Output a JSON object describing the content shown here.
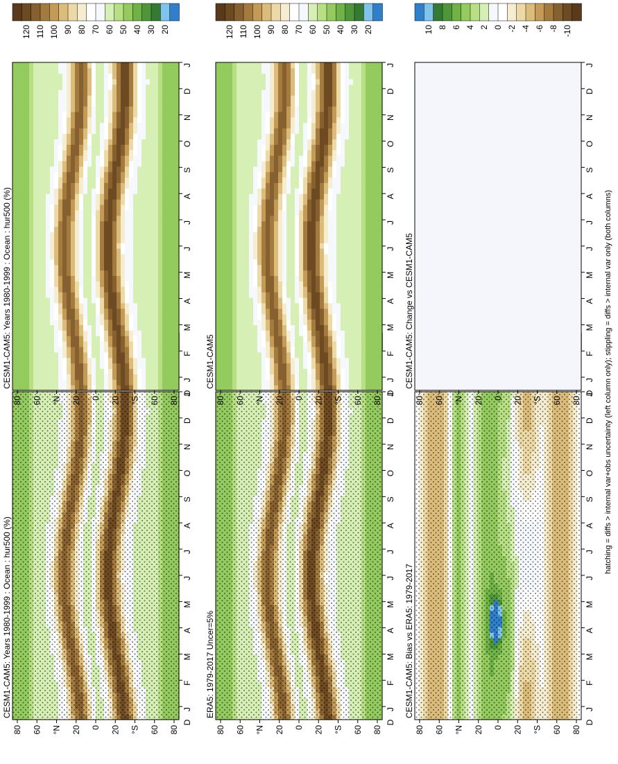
{
  "footer_note": "hatching = diffs > internal var+obs uncertainty (left column only); stippling = diffs > internal var only (both columns)",
  "colors": {
    "abs_scale": [
      "#5a3a1a",
      "#6e4a23",
      "#87602f",
      "#a47b3e",
      "#c39a56",
      "#dbbc7a",
      "#ecd9a6",
      "#f6edd1",
      "#ffffff",
      "#f5f8fd",
      "#d6efb4",
      "#b7df84",
      "#93cb5e",
      "#6fb347",
      "#4f963b",
      "#357a33",
      "#80c4ec",
      "#2f7fcb"
    ],
    "diff_scale": [
      "#2f7fcb",
      "#80c4ec",
      "#357a33",
      "#4f963b",
      "#6fb347",
      "#93cb5e",
      "#b7df84",
      "#d6efb4",
      "#f5f8fd",
      "#ffffff",
      "#f6edd1",
      "#ecd9a6",
      "#dbbc7a",
      "#c39a56",
      "#a47b3e",
      "#87602f",
      "#6e4a23",
      "#5a3a1a"
    ],
    "ocean_background": "#f4f6fb"
  },
  "chart_data": [
    {
      "type": "heatmap",
      "title": "CESM1-CAM5: Years 1980-1999 : Ocean : hur500 (%)",
      "x_categories": [
        "J",
        "F",
        "M",
        "A",
        "M",
        "J",
        "J",
        "A",
        "S",
        "O",
        "N",
        "D",
        "J"
      ],
      "y_ticks": [
        "80",
        "60",
        "°N",
        "20",
        "0",
        "20",
        "°S",
        "60",
        "80"
      ],
      "y_start_label": "D",
      "colorbar_labels": [
        "120",
        "110",
        "100",
        "90",
        "80",
        "70",
        "60",
        "50",
        "40",
        "30",
        "20"
      ],
      "zlim": [
        10,
        130
      ],
      "stippling": true,
      "hatching": true
    },
    {
      "type": "heatmap",
      "title": "CESM1-CAM5: Years 1980-1999 : Ocean : hur500 (%)",
      "x_categories": [
        "J",
        "F",
        "M",
        "A",
        "M",
        "J",
        "J",
        "A",
        "S",
        "O",
        "N",
        "D",
        "J"
      ],
      "y_ticks": [
        "80",
        "60",
        "°N",
        "20",
        "0",
        "20",
        "°S",
        "60",
        "80"
      ],
      "y_start_label": "D",
      "colorbar_labels": [
        "120",
        "110",
        "100",
        "90",
        "80",
        "70",
        "60",
        "50",
        "40",
        "30",
        "20"
      ],
      "zlim": [
        10,
        130
      ],
      "stippling": false,
      "hatching": false
    },
    {
      "type": "heatmap",
      "title": "ERA5: 1979-2017 Uncer=5%",
      "x_categories": [
        "J",
        "F",
        "M",
        "A",
        "M",
        "J",
        "J",
        "A",
        "S",
        "O",
        "N",
        "D",
        "J"
      ],
      "y_ticks": [
        "80",
        "60",
        "°N",
        "20",
        "0",
        "20",
        "°S",
        "60",
        "80"
      ],
      "y_start_label": "D",
      "colorbar_labels": [
        "120",
        "110",
        "100",
        "90",
        "80",
        "70",
        "60",
        "50",
        "40",
        "30",
        "20"
      ],
      "zlim": [
        10,
        130
      ],
      "stippling": true,
      "hatching": false
    },
    {
      "type": "heatmap",
      "title": "CESM1-CAM5",
      "x_categories": [
        "J",
        "F",
        "M",
        "A",
        "M",
        "J",
        "J",
        "A",
        "S",
        "O",
        "N",
        "D",
        "J"
      ],
      "y_ticks": [
        "80",
        "60",
        "°N",
        "20",
        "0",
        "20",
        "°S",
        "60",
        "80"
      ],
      "y_start_label": "D",
      "colorbar_labels": [
        "120",
        "110",
        "100",
        "90",
        "80",
        "70",
        "60",
        "50",
        "40",
        "30",
        "20"
      ],
      "zlim": [
        10,
        130
      ],
      "stippling": false,
      "hatching": false
    },
    {
      "type": "heatmap",
      "title": "CESM1-CAM5: Bias vs ERA5: 1979-2017",
      "x_categories": [
        "J",
        "F",
        "M",
        "A",
        "M",
        "J",
        "J",
        "A",
        "S",
        "O",
        "N",
        "D",
        "J"
      ],
      "y_ticks": [
        "80",
        "60",
        "°N",
        "20",
        "0",
        "20",
        "°S",
        "60",
        "80"
      ],
      "y_start_label": "D",
      "colorbar_labels": [
        "10",
        "8",
        "6",
        "4",
        "2",
        "0",
        "-2",
        "-4",
        "-6",
        "-8",
        "-10"
      ],
      "zlim": [
        -12,
        12
      ],
      "stippling": true,
      "hatching": true
    },
    {
      "type": "heatmap",
      "title": "CESM1-CAM5: Change vs CESM1-CAM5",
      "x_categories": [
        "J",
        "F",
        "M",
        "A",
        "M",
        "J",
        "J",
        "A",
        "S",
        "O",
        "N",
        "D",
        "J"
      ],
      "y_ticks": [
        "80",
        "60",
        "°N",
        "20",
        "0",
        "20",
        "°S",
        "60",
        "80"
      ],
      "y_start_label": "D",
      "colorbar_labels": [
        "10",
        "8",
        "6",
        "4",
        "2",
        "0",
        "-2",
        "-4",
        "-6",
        "-8",
        "-10"
      ],
      "zlim": [
        -12,
        12
      ],
      "stippling": false,
      "hatching": false
    }
  ]
}
